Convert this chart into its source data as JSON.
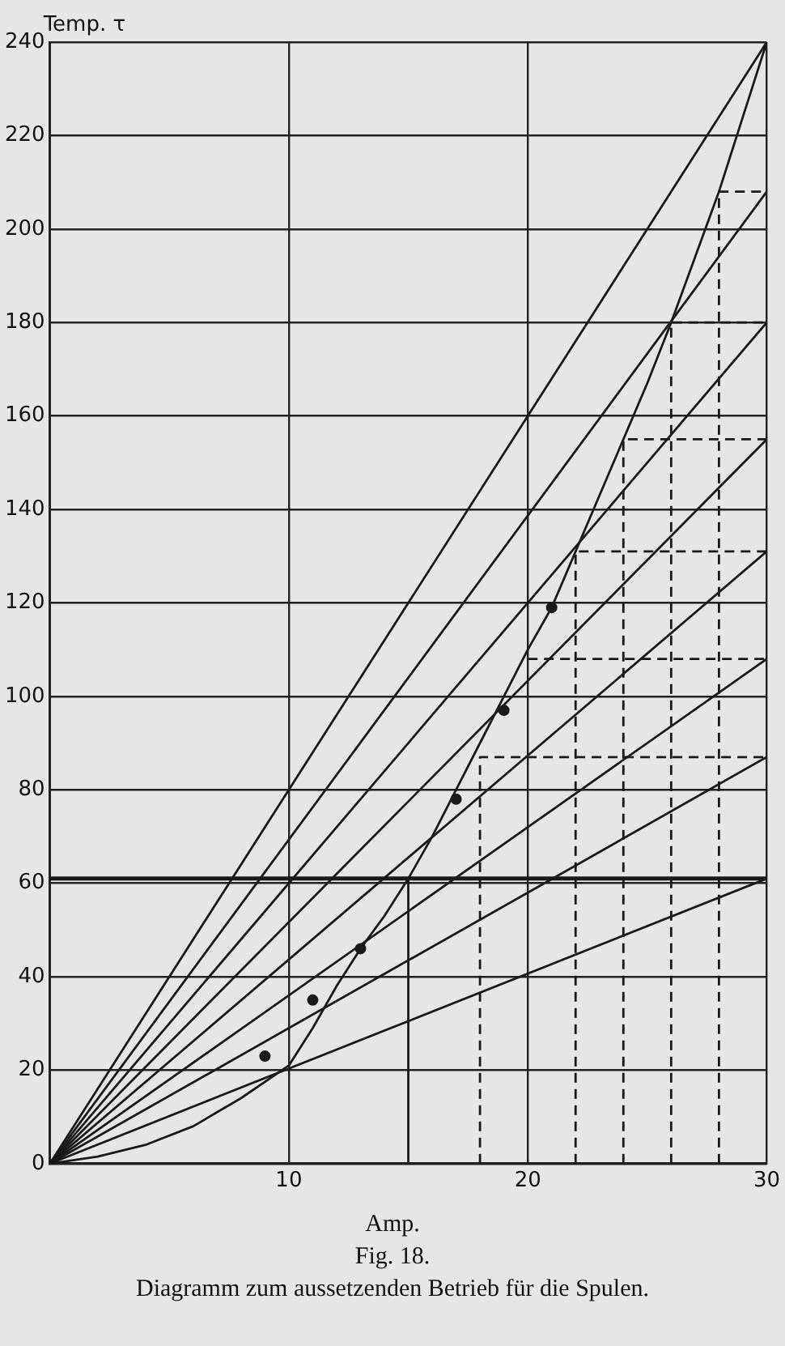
{
  "chart_data": {
    "type": "line",
    "xlabel": "Amp.",
    "ylabel": "Temp. τ",
    "annotations": [
      "Fig. 18.",
      "Diagramm zum aussetzenden Betrieb für die Spulen."
    ],
    "xlim": [
      0,
      30
    ],
    "xticks": [
      {
        "value": 0,
        "label": null
      },
      10,
      20,
      30
    ],
    "ylim": [
      0,
      240
    ],
    "yticks": [
      0,
      20,
      40,
      60,
      80,
      100,
      120,
      140,
      160,
      180,
      200,
      220,
      240
    ],
    "grid": true,
    "legend": false,
    "series": [
      {
        "type": "line",
        "color": "#1a1a1a",
        "x": [
          0,
          30
        ],
        "values": [
          0,
          240
        ]
      },
      {
        "type": "line",
        "color": "#1a1a1a",
        "x": [
          0,
          30
        ],
        "values": [
          0,
          208
        ]
      },
      {
        "type": "line",
        "color": "#1a1a1a",
        "x": [
          0,
          30
        ],
        "values": [
          0,
          180
        ]
      },
      {
        "type": "line",
        "color": "#1a1a1a",
        "x": [
          0,
          30
        ],
        "values": [
          0,
          155
        ]
      },
      {
        "type": "line",
        "color": "#1a1a1a",
        "x": [
          0,
          30
        ],
        "values": [
          0,
          131
        ]
      },
      {
        "type": "line",
        "color": "#1a1a1a",
        "x": [
          0,
          30
        ],
        "values": [
          0,
          108
        ]
      },
      {
        "type": "line",
        "color": "#1a1a1a",
        "x": [
          0,
          30
        ],
        "values": [
          0,
          87
        ]
      },
      {
        "type": "line",
        "color": "#1a1a1a",
        "x": [
          0,
          30
        ],
        "values": [
          0,
          61
        ]
      },
      {
        "type": "line",
        "color": "#1a1a1a",
        "x": [
          0,
          2,
          4,
          6,
          8,
          10,
          11,
          12,
          13,
          14,
          15,
          16,
          17,
          18,
          19,
          20,
          21,
          22,
          23,
          24,
          25,
          26,
          27,
          28,
          29,
          30
        ],
        "values": [
          0,
          1.5,
          4,
          8,
          14,
          21,
          29,
          38,
          46,
          53,
          61,
          70,
          80,
          90,
          100,
          110,
          119,
          131,
          143,
          155,
          167,
          180,
          194,
          208,
          224,
          240
        ]
      },
      {
        "type": "scatter",
        "color": "#1a1a1a",
        "marker": "circle",
        "x": [
          9,
          11,
          13,
          17,
          19,
          21
        ],
        "values": [
          23,
          35,
          46,
          78,
          97,
          119
        ]
      },
      {
        "type": "line",
        "color": "#1a1a1a",
        "x": [
          15,
          15
        ],
        "values": [
          0,
          61
        ]
      },
      {
        "type": "line",
        "color": "#1a1a1a",
        "line_style": "dashed",
        "x": [
          18,
          18,
          30
        ],
        "values": [
          0,
          87,
          87
        ]
      },
      {
        "type": "line",
        "color": "#1a1a1a",
        "line_style": "dashed",
        "x": [
          20,
          30
        ],
        "values": [
          108,
          108
        ]
      },
      {
        "type": "line",
        "color": "#1a1a1a",
        "line_style": "dashed",
        "x": [
          22,
          22,
          30
        ],
        "values": [
          0,
          131,
          131
        ]
      },
      {
        "type": "line",
        "color": "#1a1a1a",
        "line_style": "dashed",
        "x": [
          24,
          24,
          30
        ],
        "values": [
          0,
          155,
          155
        ]
      },
      {
        "type": "line",
        "color": "#1a1a1a",
        "line_style": "dashed",
        "x": [
          26,
          26,
          30
        ],
        "values": [
          0,
          180,
          180
        ]
      },
      {
        "type": "line",
        "color": "#1a1a1a",
        "line_style": "dashed",
        "x": [
          28,
          28,
          30
        ],
        "values": [
          0,
          208,
          208
        ]
      }
    ],
    "ref_lines": [
      {
        "axis": "y",
        "value": 61,
        "color": "#1a1a1a"
      }
    ]
  }
}
